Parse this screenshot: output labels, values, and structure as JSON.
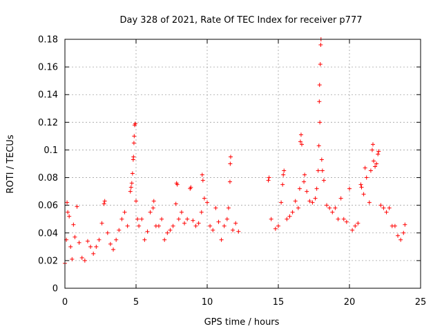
{
  "chart_data": {
    "type": "scatter",
    "title": "Day 328 of 2021, Rate Of TEC Index for receiver p777",
    "xlabel": "GPS time / hours",
    "ylabel": "ROTI / TECUs",
    "xlim": [
      0,
      25
    ],
    "ylim": [
      0,
      0.18
    ],
    "xticks": [
      0,
      5,
      10,
      15,
      20,
      25
    ],
    "xtick_labels": [
      "0",
      "5",
      "10",
      "15",
      "20",
      "25"
    ],
    "yticks": [
      0,
      0.02,
      0.04,
      0.06,
      0.08,
      0.1,
      0.12,
      0.14,
      0.16,
      0.18
    ],
    "ytick_labels": [
      "0",
      "0.02",
      "0.04",
      "0.06",
      "0.08",
      "0.1",
      "0.12",
      "0.14",
      "0.16",
      "0.18"
    ],
    "grid": true,
    "marker": "plus",
    "color": "#ff0000",
    "data_gap_hours": [
      12.3,
      14.3
    ],
    "series": [
      {
        "name": "ROTI",
        "points": [
          [
            0.0,
            0.018
          ],
          [
            0.1,
            0.035
          ],
          [
            0.15,
            0.062
          ],
          [
            0.2,
            0.055
          ],
          [
            0.3,
            0.052
          ],
          [
            0.4,
            0.03
          ],
          [
            0.5,
            0.021
          ],
          [
            0.6,
            0.046
          ],
          [
            0.7,
            0.037
          ],
          [
            0.85,
            0.059
          ],
          [
            1.0,
            0.033
          ],
          [
            1.2,
            0.022
          ],
          [
            1.4,
            0.02
          ],
          [
            1.6,
            0.034
          ],
          [
            1.8,
            0.03
          ],
          [
            2.0,
            0.025
          ],
          [
            2.2,
            0.03
          ],
          [
            2.4,
            0.035
          ],
          [
            2.6,
            0.047
          ],
          [
            2.75,
            0.061
          ],
          [
            2.8,
            0.063
          ],
          [
            3.0,
            0.04
          ],
          [
            3.2,
            0.032
          ],
          [
            3.4,
            0.028
          ],
          [
            3.6,
            0.035
          ],
          [
            3.8,
            0.042
          ],
          [
            4.0,
            0.05
          ],
          [
            4.2,
            0.055
          ],
          [
            4.4,
            0.045
          ],
          [
            4.6,
            0.07
          ],
          [
            4.65,
            0.073
          ],
          [
            4.7,
            0.076
          ],
          [
            4.75,
            0.083
          ],
          [
            4.8,
            0.093
          ],
          [
            4.82,
            0.095
          ],
          [
            4.85,
            0.105
          ],
          [
            4.87,
            0.11
          ],
          [
            4.9,
            0.118
          ],
          [
            4.95,
            0.119
          ],
          [
            5.0,
            0.063
          ],
          [
            5.1,
            0.05
          ],
          [
            5.2,
            0.045
          ],
          [
            5.4,
            0.05
          ],
          [
            5.6,
            0.035
          ],
          [
            5.8,
            0.041
          ],
          [
            6.0,
            0.055
          ],
          [
            6.2,
            0.058
          ],
          [
            6.25,
            0.063
          ],
          [
            6.4,
            0.045
          ],
          [
            6.6,
            0.045
          ],
          [
            6.8,
            0.05
          ],
          [
            7.0,
            0.035
          ],
          [
            7.2,
            0.04
          ],
          [
            7.4,
            0.042
          ],
          [
            7.6,
            0.045
          ],
          [
            7.8,
            0.061
          ],
          [
            7.85,
            0.076
          ],
          [
            7.9,
            0.075
          ],
          [
            8.0,
            0.05
          ],
          [
            8.2,
            0.055
          ],
          [
            8.4,
            0.047
          ],
          [
            8.6,
            0.05
          ],
          [
            8.8,
            0.072
          ],
          [
            8.85,
            0.073
          ],
          [
            9.0,
            0.049
          ],
          [
            9.2,
            0.045
          ],
          [
            9.4,
            0.047
          ],
          [
            9.6,
            0.055
          ],
          [
            9.65,
            0.082
          ],
          [
            9.7,
            0.078
          ],
          [
            9.8,
            0.065
          ],
          [
            10.0,
            0.062
          ],
          [
            10.2,
            0.045
          ],
          [
            10.4,
            0.042
          ],
          [
            10.6,
            0.058
          ],
          [
            10.8,
            0.048
          ],
          [
            11.0,
            0.035
          ],
          [
            11.2,
            0.045
          ],
          [
            11.4,
            0.05
          ],
          [
            11.5,
            0.058
          ],
          [
            11.6,
            0.077
          ],
          [
            11.62,
            0.09
          ],
          [
            11.65,
            0.095
          ],
          [
            11.8,
            0.042
          ],
          [
            12.0,
            0.047
          ],
          [
            12.2,
            0.041
          ],
          [
            14.3,
            0.078
          ],
          [
            14.35,
            0.08
          ],
          [
            14.5,
            0.05
          ],
          [
            14.8,
            0.043
          ],
          [
            15.0,
            0.045
          ],
          [
            15.2,
            0.062
          ],
          [
            15.3,
            0.075
          ],
          [
            15.35,
            0.082
          ],
          [
            15.4,
            0.085
          ],
          [
            15.6,
            0.05
          ],
          [
            15.8,
            0.052
          ],
          [
            16.0,
            0.055
          ],
          [
            16.2,
            0.063
          ],
          [
            16.4,
            0.058
          ],
          [
            16.5,
            0.072
          ],
          [
            16.55,
            0.106
          ],
          [
            16.6,
            0.111
          ],
          [
            16.65,
            0.104
          ],
          [
            16.8,
            0.077
          ],
          [
            16.85,
            0.082
          ],
          [
            17.0,
            0.07
          ],
          [
            17.2,
            0.063
          ],
          [
            17.4,
            0.062
          ],
          [
            17.6,
            0.065
          ],
          [
            17.7,
            0.072
          ],
          [
            17.8,
            0.085
          ],
          [
            17.85,
            0.103
          ],
          [
            17.88,
            0.135
          ],
          [
            17.9,
            0.147
          ],
          [
            17.92,
            0.12
          ],
          [
            17.95,
            0.162
          ],
          [
            17.98,
            0.176
          ],
          [
            18.0,
            0.18
          ],
          [
            18.05,
            0.093
          ],
          [
            18.1,
            0.085
          ],
          [
            18.2,
            0.078
          ],
          [
            18.4,
            0.06
          ],
          [
            18.6,
            0.058
          ],
          [
            18.8,
            0.055
          ],
          [
            19.0,
            0.058
          ],
          [
            19.2,
            0.05
          ],
          [
            19.4,
            0.065
          ],
          [
            19.6,
            0.05
          ],
          [
            19.8,
            0.048
          ],
          [
            20.0,
            0.072
          ],
          [
            20.2,
            0.042
          ],
          [
            20.4,
            0.045
          ],
          [
            20.6,
            0.047
          ],
          [
            20.8,
            0.075
          ],
          [
            20.85,
            0.073
          ],
          [
            21.0,
            0.068
          ],
          [
            21.1,
            0.087
          ],
          [
            21.2,
            0.08
          ],
          [
            21.4,
            0.062
          ],
          [
            21.5,
            0.085
          ],
          [
            21.6,
            0.1
          ],
          [
            21.65,
            0.104
          ],
          [
            21.7,
            0.092
          ],
          [
            21.8,
            0.088
          ],
          [
            21.9,
            0.09
          ],
          [
            22.0,
            0.097
          ],
          [
            22.05,
            0.099
          ],
          [
            22.2,
            0.06
          ],
          [
            22.4,
            0.058
          ],
          [
            22.6,
            0.055
          ],
          [
            22.8,
            0.058
          ],
          [
            23.0,
            0.045
          ],
          [
            23.2,
            0.045
          ],
          [
            23.4,
            0.038
          ],
          [
            23.6,
            0.035
          ],
          [
            23.8,
            0.04
          ],
          [
            23.9,
            0.046
          ]
        ]
      }
    ]
  }
}
